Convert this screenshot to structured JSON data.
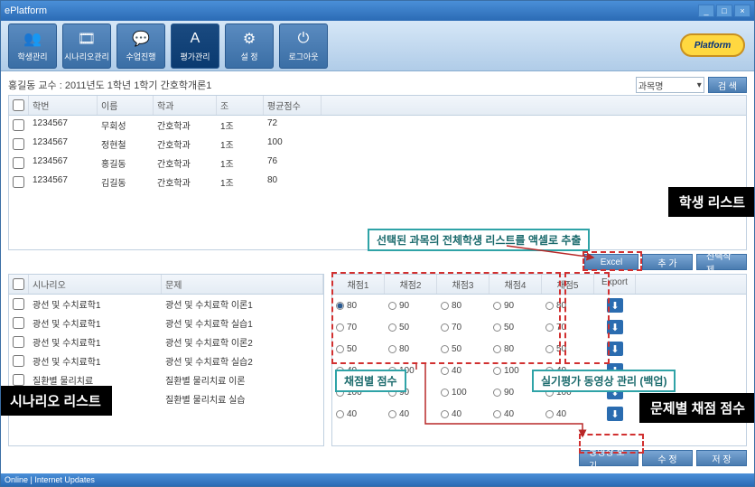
{
  "window": {
    "title": "ePlatform"
  },
  "toolbar": {
    "items": [
      {
        "icon": "👥",
        "label": "학생관리"
      },
      {
        "icon": "🎞",
        "label": "시나리오관리"
      },
      {
        "icon": "💬",
        "label": "수업진행"
      },
      {
        "icon": "A",
        "label": "평가관리",
        "active": true
      },
      {
        "icon": "⚙",
        "label": "설 정"
      },
      {
        "icon": "⏻",
        "label": "로그아웃"
      }
    ],
    "logo": "Platform"
  },
  "subheader": {
    "text": "홍길동 교수 : 2011년도 1학년 1학기 간호학개론1",
    "combo": "과목명",
    "search": "검 색"
  },
  "topTable": {
    "cols": [
      "학번",
      "이름",
      "학과",
      "조",
      "평균점수"
    ],
    "rows": [
      [
        "1234567",
        "무회성",
        "간호학과",
        "1조",
        "72"
      ],
      [
        "1234567",
        "정현철",
        "간호학과",
        "1조",
        "100"
      ],
      [
        "1234567",
        "홍길동",
        "간호학과",
        "1조",
        "76"
      ],
      [
        "1234567",
        "김길동",
        "간호학과",
        "1조",
        "80"
      ]
    ]
  },
  "midButtons": {
    "excel": "Excel",
    "add": "추 가",
    "del": "선택삭제"
  },
  "scenTable": {
    "cols": [
      "시나리오",
      "문제"
    ],
    "rows": [
      [
        "광선 및 수치료학1",
        "광선 및 수치료학 이론1"
      ],
      [
        "광선 및 수치료학1",
        "광선 및 수치료학 실습1"
      ],
      [
        "광선 및 수치료학1",
        "광선 및 수치료학 이론2"
      ],
      [
        "광선 및 수치료학1",
        "광선 및 수치료학 실습2"
      ],
      [
        "질환별 물리치료",
        "질환별 물리치료 이론"
      ],
      [
        "질환별 물리치료",
        "질환별 물리치료 실습"
      ]
    ]
  },
  "scoreTable": {
    "cols": [
      "채점1",
      "채점2",
      "채점3",
      "채점4",
      "채점5"
    ],
    "export": "Export",
    "rows": [
      {
        "vals": [
          "80",
          "90",
          "80",
          "90",
          "80"
        ],
        "sel": 0
      },
      {
        "vals": [
          "70",
          "50",
          "70",
          "50",
          "70"
        ],
        "sel": -1
      },
      {
        "vals": [
          "50",
          "80",
          "50",
          "80",
          "50"
        ],
        "sel": -1
      },
      {
        "vals": [
          "40",
          "100",
          "40",
          "100",
          "40"
        ],
        "sel": -1
      },
      {
        "vals": [
          "100",
          "90",
          "100",
          "90",
          "100"
        ],
        "sel": -1
      },
      {
        "vals": [
          "40",
          "40",
          "40",
          "40",
          "40"
        ],
        "sel": -1
      }
    ]
  },
  "bottomButtons": {
    "video": "동영상 보기",
    "edit": "수 정",
    "save": "저 장"
  },
  "callouts": {
    "topExport": "선택된 과목의 전체학생 리스트를 액셀로 추출",
    "scorePer": "채점별 점수",
    "videoMgmt": "실기평가 동영상 관리 (백업)"
  },
  "labels": {
    "studentList": "학생 리스트",
    "scenList": "시나리오 리스트",
    "questScore": "문제별 채점 점수"
  },
  "colors": {
    "titlebar_from": "#4a8fd8",
    "titlebar_to": "#2b6bb5",
    "toolbar_from": "#d6e7f7",
    "toolbar_to": "#b0cce8",
    "btn_from": "#7aa6d4",
    "btn_to": "#4a7cb0",
    "tbtn_from": "#5a8bc0",
    "tbtn_to": "#3a6ea5",
    "callout_border": "#2fa3a7",
    "red_dash": "#d13030",
    "logo_bg": "#ffd840"
  },
  "status": "Online | Internet Updates"
}
